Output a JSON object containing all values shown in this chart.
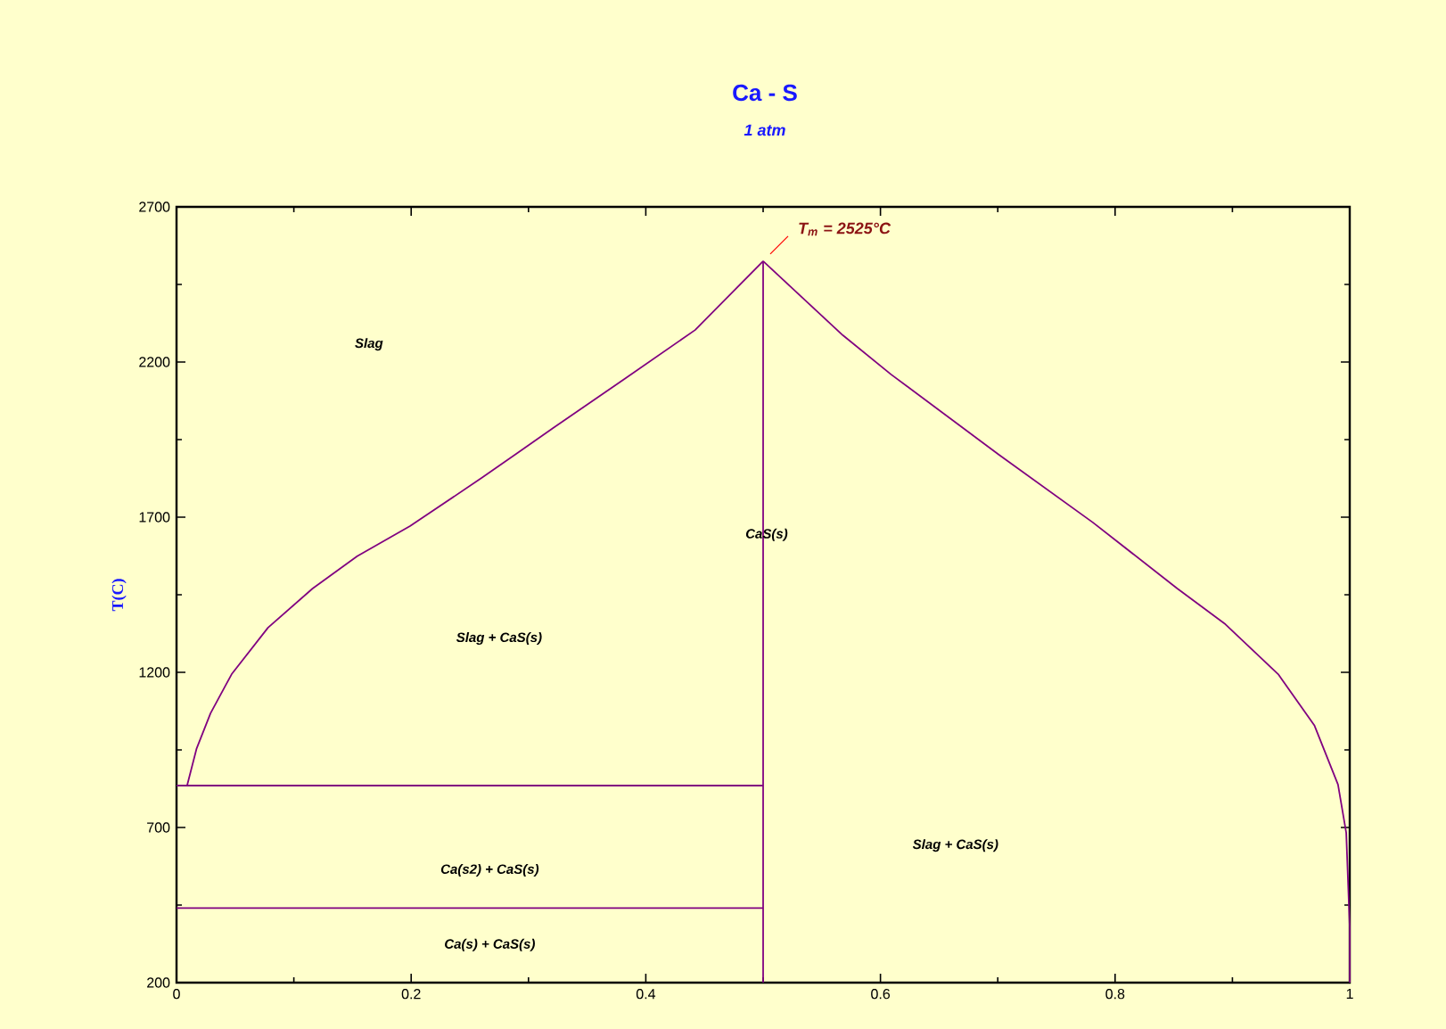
{
  "chart_data": {
    "type": "line",
    "title": "Ca - S",
    "subtitle": "1 atm",
    "ylabel": "T(C)",
    "xlim": [
      0,
      1
    ],
    "ylim": [
      200,
      2700
    ],
    "xticks": [
      0,
      0.2,
      0.4,
      0.6,
      0.8,
      1
    ],
    "yticks": [
      200,
      700,
      1200,
      1700,
      2200,
      2700
    ],
    "marker": "none",
    "line_style": "solid",
    "series": [
      {
        "color": "#800080",
        "x": [
          0.009,
          0.017,
          0.029,
          0.047,
          0.078,
          0.116,
          0.154,
          0.199,
          0.26,
          0.321,
          0.381,
          0.442,
          0.5
        ],
        "values": [
          835,
          953,
          1068,
          1194,
          1344,
          1470,
          1574,
          1671,
          1826,
          1987,
          2143,
          2303,
          2525
        ]
      },
      {
        "color": "#800080",
        "x": [
          0.5,
          0.568,
          0.609,
          0.701,
          0.781,
          0.853,
          0.894,
          0.939,
          0.97,
          0.99,
          0.997,
          1.0,
          1.0
        ],
        "values": [
          2525,
          2286,
          2160,
          1901,
          1683,
          1470,
          1355,
          1194,
          1028,
          838,
          683,
          378,
          200
        ]
      },
      {
        "color": "#800080",
        "x": [
          0.5,
          0.5
        ],
        "values": [
          200,
          2525
        ]
      },
      {
        "color": "#800080",
        "x": [
          0,
          0.5
        ],
        "values": [
          835,
          835
        ]
      },
      {
        "color": "#800080",
        "x": [
          0,
          0.5
        ],
        "values": [
          440,
          440
        ]
      }
    ],
    "annotations": [
      {
        "text": "T$_{m}$ = 2525°C",
        "x": 0.5,
        "y": 2525
      },
      "Slag",
      "CaS(s)",
      "Slag + CaS(s)",
      "Slag + CaS(s)",
      "Ca(s2) + CaS(s)",
      "Ca(s) + CaS(s)"
    ]
  }
}
